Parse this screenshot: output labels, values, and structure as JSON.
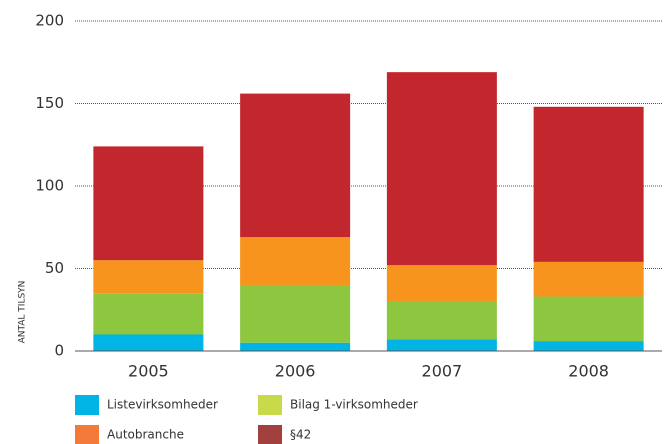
{
  "chart_data": {
    "type": "stacked_bar",
    "y_label": "ANTAL TILSYN",
    "categories": [
      "2005",
      "2006",
      "2007",
      "2008"
    ],
    "series": [
      {
        "name": "Listevirksomheder",
        "color": "#00b4e6",
        "legend_color": "#00b4e6",
        "values": [
          10,
          5,
          7,
          6
        ]
      },
      {
        "name": "Bilag 1-virksomheder",
        "color": "#8dc63f",
        "legend_color": "#c8d94a",
        "values": [
          25,
          35,
          23,
          27
        ]
      },
      {
        "name": "Autobranche",
        "color": "#f7941d",
        "legend_color": "#f47a3a",
        "values": [
          20,
          29,
          22,
          21
        ]
      },
      {
        "name": "§42",
        "color": "#c1272d",
        "legend_color": "#a2403f",
        "values": [
          69,
          87,
          117,
          94
        ]
      }
    ],
    "ylim": [
      0,
      200
    ],
    "yticks": [
      0,
      50,
      100,
      150,
      200
    ],
    "grid": true
  }
}
